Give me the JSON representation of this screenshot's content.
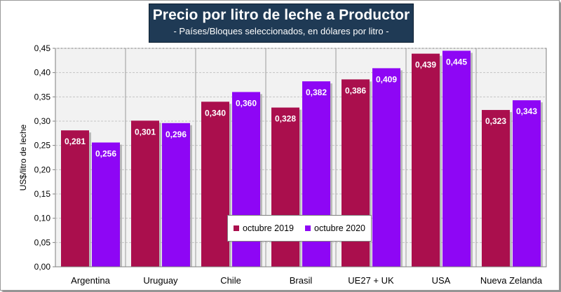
{
  "chart_data": {
    "type": "bar",
    "title": "Precio por litro de leche a Productor",
    "subtitle": "- Países/Bloques seleccionados, en dólares por litro -",
    "ylabel": "US$/litro de leche",
    "xlabel": "",
    "ylim": [
      0,
      0.45
    ],
    "yticks": [
      "0,00",
      "0,05",
      "0,10",
      "0,15",
      "0,20",
      "0,25",
      "0,30",
      "0,35",
      "0,40",
      "0,45"
    ],
    "categories": [
      "Argentina",
      "Uruguay",
      "Chile",
      "Brasil",
      "UE27 + UK",
      "USA",
      "Nueva Zelanda"
    ],
    "series": [
      {
        "name": "octubre 2019",
        "color": "#aa0f4d",
        "values": [
          0.281,
          0.301,
          0.34,
          0.328,
          0.386,
          0.439,
          0.323
        ],
        "labels": [
          "0,281",
          "0,301",
          "0,340",
          "0,328",
          "0,386",
          "0,439",
          "0,323"
        ]
      },
      {
        "name": "octubre 2020",
        "color": "#8e06f5",
        "values": [
          0.256,
          0.296,
          0.36,
          0.382,
          0.409,
          0.445,
          0.343
        ],
        "labels": [
          "0,256",
          "0,296",
          "0,360",
          "0,382",
          "0,409",
          "0,445",
          "0,343"
        ]
      }
    ],
    "grid": true,
    "legend_position": "bottom-center"
  }
}
